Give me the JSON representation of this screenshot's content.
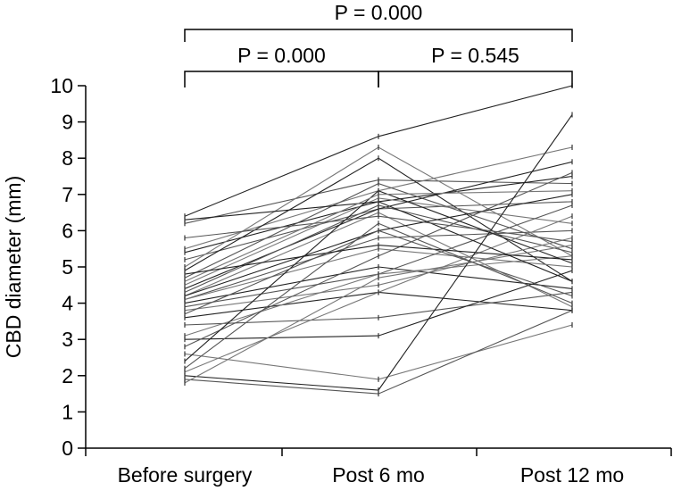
{
  "chart_data": {
    "type": "line",
    "title": "",
    "xlabel": "",
    "ylabel": "CBD diameter (mm)",
    "categories": [
      "Before surgery",
      "Post 6 mo",
      "Post 12 mo"
    ],
    "ylim": [
      0,
      10
    ],
    "yticks": [
      "0",
      "1",
      "2",
      "3",
      "4",
      "5",
      "6",
      "7",
      "8",
      "9",
      "10"
    ],
    "grid": false,
    "legend": "none",
    "line_color": "#333333",
    "comparisons": [
      {
        "label": "P = 0.000",
        "from": 0,
        "to": 2
      },
      {
        "label": "P = 0.000",
        "from": 0,
        "to": 1
      },
      {
        "label": "P = 0.545",
        "from": 1,
        "to": 2
      }
    ],
    "series": [
      {
        "values": [
          6.4,
          8.6,
          10.0
        ]
      },
      {
        "values": [
          6.2,
          7.4,
          7.3
        ]
      },
      {
        "values": [
          5.5,
          7.1,
          8.3
        ]
      },
      {
        "values": [
          5.4,
          6.8,
          7.5
        ]
      },
      {
        "values": [
          5.2,
          6.6,
          6.8
        ]
      },
      {
        "values": [
          5.0,
          8.3,
          5.3
        ]
      },
      {
        "values": [
          4.9,
          8.0,
          4.6
        ]
      },
      {
        "values": [
          4.7,
          7.3,
          5.5
        ]
      },
      {
        "values": [
          4.5,
          6.9,
          6.2
        ]
      },
      {
        "values": [
          4.4,
          6.6,
          7.9
        ]
      },
      {
        "values": [
          4.3,
          6.7,
          5.4
        ]
      },
      {
        "values": [
          4.2,
          6.5,
          3.9
        ]
      },
      {
        "values": [
          4.2,
          6.0,
          7.0
        ]
      },
      {
        "values": [
          4.1,
          5.8,
          6.0
        ]
      },
      {
        "values": [
          4.1,
          5.5,
          5.0
        ]
      },
      {
        "values": [
          4.0,
          5.0,
          4.4
        ]
      },
      {
        "values": [
          3.9,
          4.8,
          6.7
        ]
      },
      {
        "values": [
          3.8,
          4.5,
          5.8
        ]
      },
      {
        "values": [
          3.6,
          4.3,
          3.8
        ]
      },
      {
        "values": [
          3.4,
          3.6,
          4.3
        ]
      },
      {
        "values": [
          3.1,
          4.8,
          5.3
        ]
      },
      {
        "values": [
          3.0,
          3.1,
          4.9
        ]
      },
      {
        "values": [
          2.8,
          5.3,
          7.6
        ]
      },
      {
        "values": [
          2.6,
          1.9,
          3.4
        ]
      },
      {
        "values": [
          2.4,
          7.1,
          5.1
        ]
      },
      {
        "values": [
          2.2,
          6.2,
          4.0
        ]
      },
      {
        "values": [
          2.1,
          4.3,
          6.4
        ]
      },
      {
        "values": [
          2.0,
          1.6,
          9.2
        ]
      },
      {
        "values": [
          1.9,
          1.5,
          3.8
        ]
      },
      {
        "values": [
          1.8,
          4.7,
          5.6
        ]
      },
      {
        "values": [
          6.3,
          6.8,
          4.6
        ]
      },
      {
        "values": [
          5.8,
          6.4,
          5.7
        ]
      },
      {
        "values": [
          4.6,
          7.0,
          7.1
        ]
      },
      {
        "values": [
          4.8,
          5.6,
          5.2
        ]
      },
      {
        "values": [
          3.7,
          6.0,
          4.2
        ]
      }
    ]
  }
}
